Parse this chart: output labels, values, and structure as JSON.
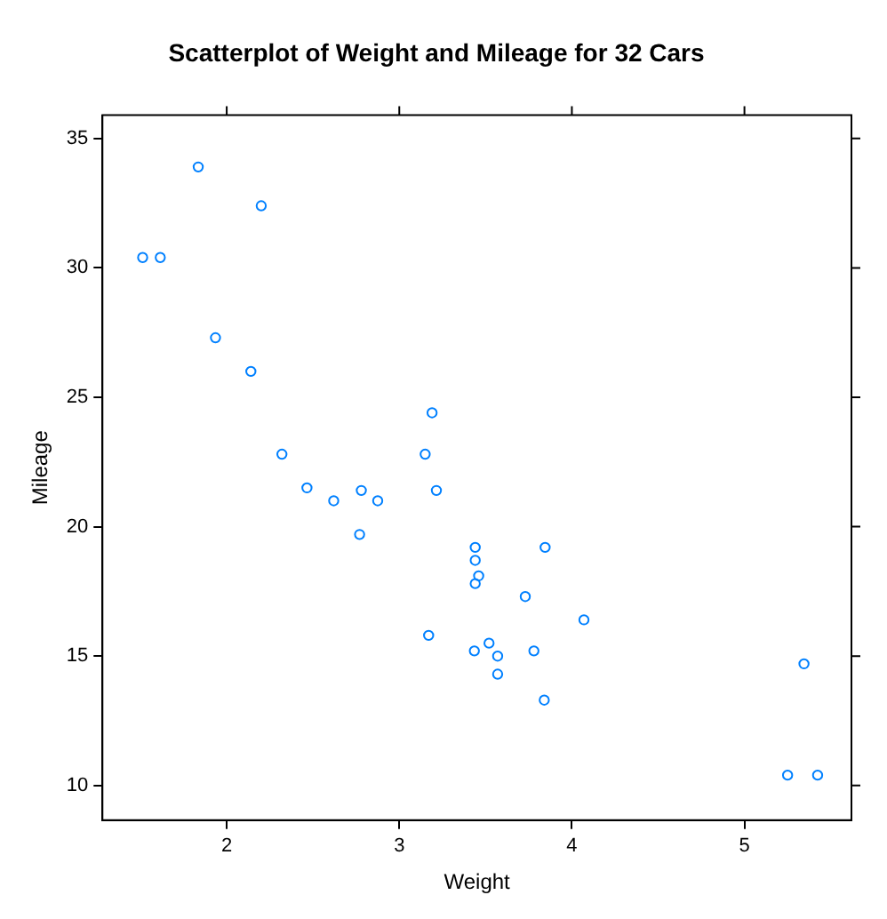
{
  "chart_data": {
    "type": "scatter",
    "title": "Scatterplot of Weight and Mileage for 32 Cars",
    "xlabel": "Weight",
    "ylabel": "Mileage",
    "x": [
      2.62,
      2.875,
      2.32,
      3.215,
      3.44,
      3.46,
      3.57,
      3.19,
      3.15,
      3.44,
      3.44,
      4.07,
      3.73,
      3.78,
      5.25,
      5.424,
      5.345,
      2.2,
      1.615,
      1.835,
      2.465,
      3.52,
      3.435,
      3.84,
      3.845,
      1.935,
      2.14,
      1.513,
      3.17,
      2.77,
      3.57,
      2.78
    ],
    "series": [
      {
        "color": "#0080ff",
        "values": [
          21.0,
          21.0,
          22.8,
          21.4,
          18.7,
          18.1,
          14.3,
          24.4,
          22.8,
          19.2,
          17.8,
          16.4,
          17.3,
          15.2,
          10.4,
          10.4,
          14.7,
          32.4,
          30.4,
          33.9,
          21.5,
          15.5,
          15.2,
          13.3,
          19.2,
          27.3,
          26.0,
          30.4,
          15.8,
          19.7,
          15.0,
          21.4
        ]
      }
    ],
    "xlim": [
      1.28,
      5.62
    ],
    "xticks": [
      2,
      3,
      4,
      5
    ],
    "ylim": [
      8.66,
      35.9
    ],
    "yticks": [
      10,
      15,
      20,
      25,
      30,
      35
    ],
    "grid": false,
    "legend": false,
    "marker": "circle"
  }
}
